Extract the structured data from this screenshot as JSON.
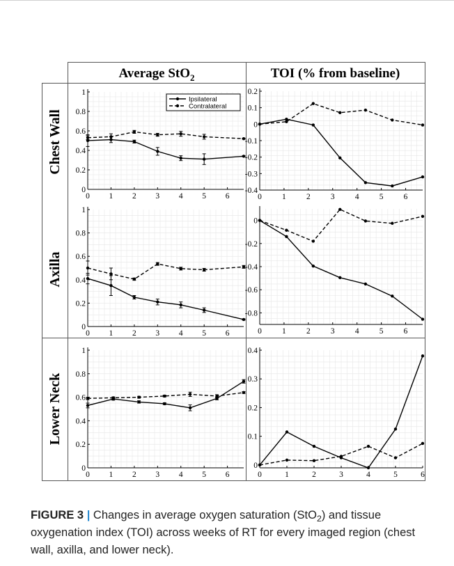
{
  "columns": [
    {
      "title_main": "Average StO",
      "title_sub": "2"
    },
    {
      "title_main": "TOI (% from baseline)",
      "title_sub": ""
    }
  ],
  "rows": [
    "Chest Wall",
    "Axilla",
    "Lower Neck"
  ],
  "legend": {
    "entries": [
      {
        "name": "Ipsilateral",
        "style": "solid"
      },
      {
        "name": "Contralateral",
        "style": "dashed"
      }
    ],
    "placement": "top-right of top-left panel"
  },
  "caption": {
    "label": "FIGURE 3",
    "separator": "|",
    "text_before_sub": "Changes in average oxygen saturation (StO",
    "sub": "2",
    "text_after_sub": ") and tissue oxygenation index (TOI) across weeks of RT for every imaged region (chest wall, axilla, and lower neck)."
  },
  "colors": {
    "line": "#000000",
    "grid": "#e6e6e6",
    "border": "#555555"
  },
  "chart_data": [
    {
      "type": "line",
      "row": "Chest Wall",
      "column": "Average StO2",
      "xlim": [
        0,
        6.7
      ],
      "ylim": [
        0,
        1
      ],
      "xticks": [
        0,
        1,
        2,
        3,
        4,
        5,
        6
      ],
      "yticks": [
        0,
        0.2,
        0.4,
        0.6,
        0.8,
        1
      ],
      "ytick_labels": [
        "0",
        "0.2",
        "0.4",
        "0.6",
        "0.8",
        "1"
      ],
      "grid": true,
      "legend": true,
      "series": [
        {
          "name": "Ipsilateral",
          "style": "solid",
          "x": [
            0,
            1,
            2,
            3,
            4,
            5,
            6.7
          ],
          "y": [
            0.5,
            0.51,
            0.49,
            0.39,
            0.32,
            0.31,
            0.34
          ],
          "err": [
            0.06,
            0.03,
            0.015,
            0.04,
            0.025,
            0.055,
            0.005
          ]
        },
        {
          "name": "Contralateral",
          "style": "dashed",
          "x": [
            0,
            1,
            2,
            3,
            4,
            5,
            6.7
          ],
          "y": [
            0.53,
            0.54,
            0.59,
            0.56,
            0.57,
            0.54,
            0.52
          ],
          "err": [
            0.02,
            0.03,
            0.015,
            0.015,
            0.025,
            0.025,
            0.005
          ]
        }
      ]
    },
    {
      "type": "line",
      "row": "Chest Wall",
      "column": "TOI (% from baseline)",
      "xlim": [
        0,
        6.7
      ],
      "ylim": [
        -0.4,
        0.2
      ],
      "xticks": [
        0,
        1,
        2,
        3,
        4,
        5,
        6
      ],
      "yticks": [
        -0.4,
        -0.3,
        -0.2,
        -0.1,
        0,
        0.1,
        0.2
      ],
      "ytick_labels": [
        "-0.4",
        "-0.3",
        "-0.2",
        "-0.1",
        "0",
        "0.1",
        "0.2"
      ],
      "grid": true,
      "legend": false,
      "series": [
        {
          "name": "Ipsilateral",
          "style": "solid",
          "x": [
            0,
            1.1,
            2.2,
            3.3,
            4.35,
            5.45,
            6.7
          ],
          "y": [
            0,
            0.03,
            -0.005,
            -0.205,
            -0.355,
            -0.375,
            -0.32
          ]
        },
        {
          "name": "Contralateral",
          "style": "dashed",
          "x": [
            0,
            1.1,
            2.2,
            3.3,
            4.35,
            5.45,
            6.7
          ],
          "y": [
            0,
            0.015,
            0.125,
            0.07,
            0.085,
            0.025,
            -0.005
          ]
        }
      ]
    },
    {
      "type": "line",
      "row": "Axilla",
      "column": "Average StO2",
      "xlim": [
        0,
        6.7
      ],
      "ylim": [
        0,
        1
      ],
      "xticks": [
        0,
        1,
        2,
        3,
        4,
        5,
        6
      ],
      "yticks": [
        0,
        0.2,
        0.4,
        0.6,
        0.8,
        1
      ],
      "ytick_labels": [
        "0",
        "0.2",
        "0.4",
        "0.6",
        "0.8",
        "1"
      ],
      "grid": true,
      "legend": false,
      "series": [
        {
          "name": "Ipsilateral",
          "style": "solid",
          "x": [
            0,
            1,
            2,
            3,
            4,
            5,
            6.7
          ],
          "y": [
            0.41,
            0.35,
            0.25,
            0.21,
            0.185,
            0.14,
            0.06
          ],
          "err": [
            0.045,
            0.085,
            0.015,
            0.025,
            0.025,
            0.02,
            0.005
          ]
        },
        {
          "name": "Contralateral",
          "style": "dashed",
          "x": [
            0,
            1,
            2,
            3,
            4,
            5,
            6.7
          ],
          "y": [
            0.5,
            0.45,
            0.405,
            0.535,
            0.495,
            0.485,
            0.51
          ],
          "err": [
            0.06,
            0.05,
            0.01,
            0.012,
            0.012,
            0.012,
            0.012
          ]
        }
      ]
    },
    {
      "type": "line",
      "row": "Axilla",
      "column": "TOI (% from baseline)",
      "xlim": [
        0,
        6.7
      ],
      "ylim": [
        -0.9,
        0.1
      ],
      "xticks": [
        0,
        1,
        2,
        3,
        4,
        5,
        6
      ],
      "yticks": [
        -0.8,
        -0.6,
        -0.4,
        -0.2,
        0
      ],
      "ytick_labels": [
        "-0.8",
        "-0.6",
        "-0.4",
        "-0.2",
        "0"
      ],
      "grid": true,
      "legend": false,
      "series": [
        {
          "name": "Ipsilateral",
          "style": "solid",
          "x": [
            0,
            1.1,
            2.2,
            3.3,
            4.35,
            5.45,
            6.7
          ],
          "y": [
            0,
            -0.14,
            -0.395,
            -0.495,
            -0.55,
            -0.655,
            -0.855
          ]
        },
        {
          "name": "Contralateral",
          "style": "dashed",
          "x": [
            0,
            1.1,
            2.2,
            3.3,
            4.35,
            5.45,
            6.7
          ],
          "y": [
            0,
            -0.085,
            -0.18,
            0.095,
            -0.005,
            -0.025,
            0.035
          ]
        }
      ]
    },
    {
      "type": "line",
      "row": "Lower Neck",
      "column": "Average StO2",
      "xlim": [
        0,
        6.7
      ],
      "ylim": [
        0,
        1
      ],
      "xticks": [
        0,
        1,
        2,
        3,
        4,
        5,
        6
      ],
      "yticks": [
        0,
        0.2,
        0.4,
        0.6,
        0.8,
        1
      ],
      "ytick_labels": [
        "0",
        "0.2",
        "0.4",
        "0.6",
        "0.8",
        "1"
      ],
      "grid": true,
      "legend": false,
      "series": [
        {
          "name": "Ipsilateral",
          "style": "solid",
          "x": [
            0,
            1.1,
            2.2,
            3.3,
            4.4,
            5.55,
            6.7
          ],
          "y": [
            0.53,
            0.585,
            0.56,
            0.545,
            0.51,
            0.59,
            0.735
          ],
          "err": [
            0.02,
            0.01,
            0.01,
            0.008,
            0.025,
            0.012,
            0.015
          ]
        },
        {
          "name": "Contralateral",
          "style": "dashed",
          "x": [
            0,
            1.1,
            2.2,
            3.3,
            4.4,
            5.55,
            6.7
          ],
          "y": [
            0.59,
            0.595,
            0.6,
            0.61,
            0.625,
            0.61,
            0.64
          ],
          "err": [
            0.01,
            0.008,
            0.008,
            0.008,
            0.018,
            0.012,
            0.008
          ]
        }
      ]
    },
    {
      "type": "line",
      "row": "Lower Neck",
      "column": "TOI (% from baseline)",
      "xlim": [
        0,
        6
      ],
      "ylim": [
        -0.01,
        0.4
      ],
      "xticks": [
        0,
        1,
        2,
        3,
        4,
        5,
        6
      ],
      "yticks": [
        0,
        0.1,
        0.2,
        0.3,
        0.4
      ],
      "ytick_labels": [
        "0",
        "0.1",
        "0.2",
        "0.3",
        "0.4"
      ],
      "grid": true,
      "legend": false,
      "series": [
        {
          "name": "Ipsilateral",
          "style": "solid",
          "x": [
            0,
            1,
            2,
            3,
            4,
            5,
            6
          ],
          "y": [
            0,
            0.115,
            0.065,
            0.025,
            -0.01,
            0.125,
            0.38
          ]
        },
        {
          "name": "Contralateral",
          "style": "dashed",
          "x": [
            0,
            1,
            2,
            3,
            4,
            5,
            6
          ],
          "y": [
            0,
            0.017,
            0.015,
            0.03,
            0.065,
            0.025,
            0.075
          ]
        }
      ]
    }
  ]
}
